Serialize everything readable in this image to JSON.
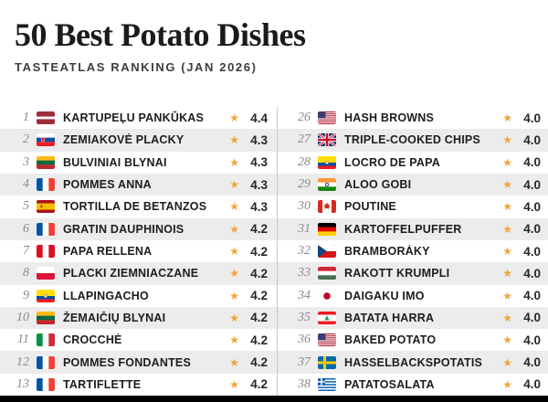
{
  "colors": {
    "star": "#F2A33C",
    "row_alt": "#ECECEC",
    "divider": "#C9C9C9",
    "rank": "#8A8A8A",
    "text": "#1D1D1D",
    "bottom_bar": "#000000"
  },
  "icons": {
    "star": "★"
  },
  "chart_data": {
    "type": "table",
    "title": "50 Best Potato Dishes",
    "subtitle": "TASTEATLAS RANKING (JAN 2026)",
    "columns": [
      "rank",
      "country",
      "dish",
      "rating"
    ],
    "column_split": 13,
    "rows": [
      {
        "rank": 1,
        "country": "Latvia",
        "flag": "lv",
        "dish": "KARTUPEĻU PANKŪKAS",
        "rating": 4.4
      },
      {
        "rank": 2,
        "country": "Slovakia",
        "flag": "sk",
        "dish": "ZEMIAKOVÉ PLACKY",
        "rating": 4.3
      },
      {
        "rank": 3,
        "country": "Lithuania",
        "flag": "lt",
        "dish": "BULVINIAI BLYNAI",
        "rating": 4.3
      },
      {
        "rank": 4,
        "country": "France",
        "flag": "fr",
        "dish": "POMMES ANNA",
        "rating": 4.3
      },
      {
        "rank": 5,
        "country": "Spain",
        "flag": "es",
        "dish": "TORTILLA DE BETANZOS",
        "rating": 4.3
      },
      {
        "rank": 6,
        "country": "France",
        "flag": "fr",
        "dish": "GRATIN DAUPHINOIS",
        "rating": 4.2
      },
      {
        "rank": 7,
        "country": "Peru",
        "flag": "pe",
        "dish": "PAPA RELLENA",
        "rating": 4.2
      },
      {
        "rank": 8,
        "country": "Poland",
        "flag": "pl",
        "dish": "PLACKI ZIEMNIACZANE",
        "rating": 4.2
      },
      {
        "rank": 9,
        "country": "Ecuador",
        "flag": "ec",
        "dish": "LLAPINGACHO",
        "rating": 4.2
      },
      {
        "rank": 10,
        "country": "Lithuania",
        "flag": "lt",
        "dish": "ŽEMAIČIŲ BLYNAI",
        "rating": 4.2
      },
      {
        "rank": 11,
        "country": "Italy",
        "flag": "it",
        "dish": "CROCCHÈ",
        "rating": 4.2
      },
      {
        "rank": 12,
        "country": "France",
        "flag": "fr",
        "dish": "POMMES FONDANTES",
        "rating": 4.2
      },
      {
        "rank": 13,
        "country": "France",
        "flag": "fr",
        "dish": "TARTIFLETTE",
        "rating": 4.2
      },
      {
        "rank": 26,
        "country": "United States",
        "flag": "us",
        "dish": "HASH BROWNS",
        "rating": 4.0
      },
      {
        "rank": 27,
        "country": "United Kingdom",
        "flag": "gb",
        "dish": "TRIPLE-COOKED CHIPS",
        "rating": 4.0
      },
      {
        "rank": 28,
        "country": "Ecuador",
        "flag": "ec",
        "dish": "LOCRO DE PAPA",
        "rating": 4.0
      },
      {
        "rank": 29,
        "country": "India",
        "flag": "in",
        "dish": "ALOO GOBI",
        "rating": 4.0
      },
      {
        "rank": 30,
        "country": "Canada",
        "flag": "ca",
        "dish": "POUTINE",
        "rating": 4.0
      },
      {
        "rank": 31,
        "country": "Germany",
        "flag": "de",
        "dish": "KARTOFFELPUFFER",
        "rating": 4.0
      },
      {
        "rank": 32,
        "country": "Czech Republic",
        "flag": "cz",
        "dish": "BRAMBORÁKY",
        "rating": 4.0
      },
      {
        "rank": 33,
        "country": "Hungary",
        "flag": "hu",
        "dish": "RAKOTT KRUMPLI",
        "rating": 4.0
      },
      {
        "rank": 34,
        "country": "Japan",
        "flag": "jp",
        "dish": "DAIGAKU IMO",
        "rating": 4.0
      },
      {
        "rank": 35,
        "country": "Lebanon",
        "flag": "lb",
        "dish": "BATATA HARRA",
        "rating": 4.0
      },
      {
        "rank": 36,
        "country": "United States",
        "flag": "us",
        "dish": "BAKED POTATO",
        "rating": 4.0
      },
      {
        "rank": 37,
        "country": "Sweden",
        "flag": "se",
        "dish": "HASSELBACKSPOTATIS",
        "rating": 4.0
      },
      {
        "rank": 38,
        "country": "Greece",
        "flag": "gr",
        "dish": "PATATOSALATA",
        "rating": 4.0
      }
    ]
  }
}
